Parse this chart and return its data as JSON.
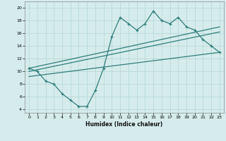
{
  "xlabel": "Humidex (Indice chaleur)",
  "xlim": [
    -0.5,
    23.5
  ],
  "ylim": [
    3.5,
    21.0
  ],
  "yticks": [
    4,
    6,
    8,
    10,
    12,
    14,
    16,
    18,
    20
  ],
  "xticks": [
    0,
    1,
    2,
    3,
    4,
    5,
    6,
    7,
    8,
    9,
    10,
    11,
    12,
    13,
    14,
    15,
    16,
    17,
    18,
    19,
    20,
    21,
    22,
    23
  ],
  "bg_color": "#d6ecec",
  "grid_color": "#b8d8d8",
  "line_color": "#2e7d7d",
  "jagged_x": [
    0,
    1,
    2,
    3,
    4,
    5,
    6,
    7,
    8,
    9,
    10,
    11,
    12,
    13,
    14,
    15,
    16,
    17,
    18,
    19,
    20,
    21,
    22,
    23
  ],
  "jagged_y": [
    10.5,
    10.0,
    8.5,
    8.0,
    6.5,
    5.5,
    4.5,
    4.5,
    7.0,
    10.5,
    15.5,
    18.5,
    17.5,
    16.5,
    17.5,
    19.5,
    18.0,
    17.5,
    18.5,
    17.0,
    16.5,
    15.0,
    14.0,
    13.0
  ],
  "line1_x": [
    0,
    23
  ],
  "line1_y": [
    10.5,
    17.0
  ],
  "line2_x": [
    0,
    23
  ],
  "line2_y": [
    10.0,
    16.2
  ],
  "line3_x": [
    0,
    23
  ],
  "line3_y": [
    9.2,
    13.0
  ]
}
